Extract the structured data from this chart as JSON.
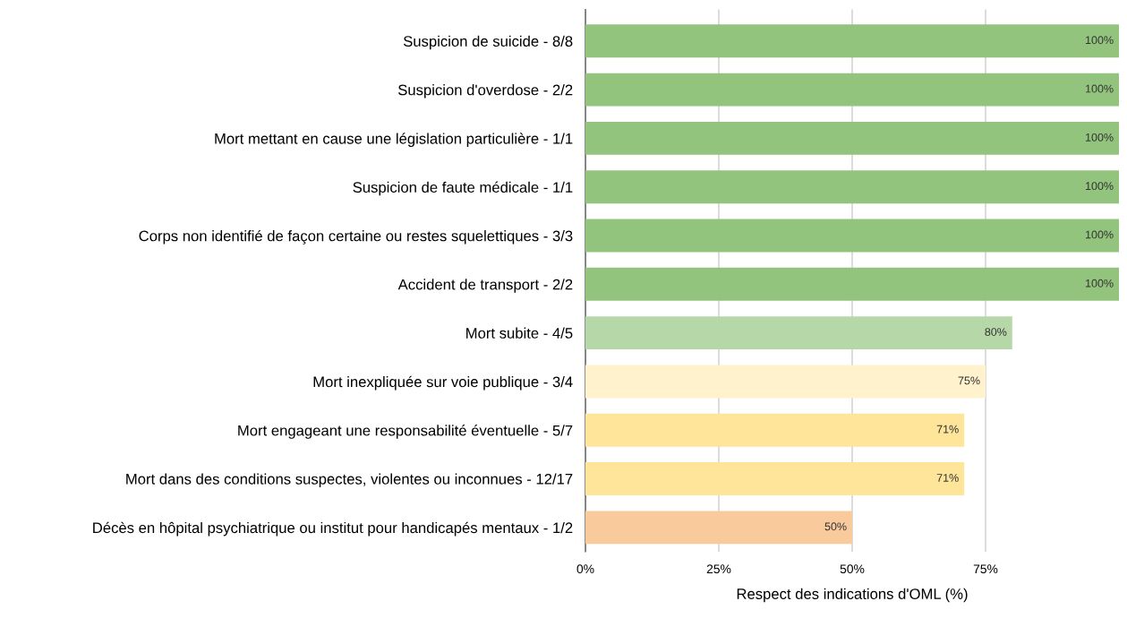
{
  "chart_data": {
    "type": "bar",
    "orientation": "horizontal",
    "xlabel": "Respect des indications d'OML (%)",
    "categories": [
      "Suspicion de suicide - 8/8",
      "Suspicion d'overdose - 2/2",
      "Mort mettant en cause une législation particulière - 1/1",
      "Suspicion de faute médicale - 1/1",
      "Corps non identifié de façon certaine ou restes squelettiques - 3/3",
      "Accident de transport - 2/2",
      "Mort subite - 4/5",
      "Mort inexpliquée sur voie publique - 3/4",
      "Mort engageant une responsabilité éventuelle - 5/7",
      "Mort dans des conditions suspectes, violentes ou inconnues - 12/17",
      "Décès en hôpital psychiatrique ou institut pour handicapés mentaux - 1/2"
    ],
    "values": [
      100,
      100,
      100,
      100,
      100,
      100,
      80,
      75,
      71,
      71,
      50
    ],
    "value_labels": [
      "100%",
      "100%",
      "100%",
      "100%",
      "100%",
      "100%",
      "80%",
      "75%",
      "71%",
      "71%",
      "50%"
    ],
    "colors": [
      "#93c47d",
      "#93c47d",
      "#93c47d",
      "#93c47d",
      "#93c47d",
      "#93c47d",
      "#b6d7a8",
      "#fff2cc",
      "#ffe599",
      "#ffe599",
      "#f9cb9c"
    ],
    "xlim": [
      0,
      100
    ],
    "xticks": [
      {
        "value": 0,
        "label": "0%"
      },
      {
        "value": 25,
        "label": "25%"
      },
      {
        "value": 50,
        "label": "50%"
      },
      {
        "value": 75,
        "label": "75%"
      }
    ],
    "grid": "x"
  }
}
